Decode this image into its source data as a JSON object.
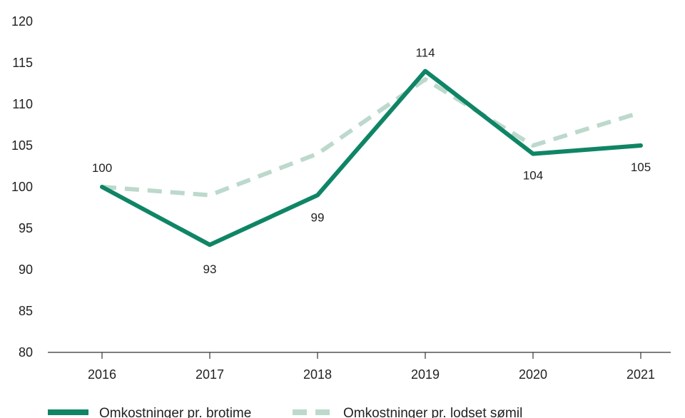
{
  "colors": {
    "brotime": "#0f8566",
    "lodset": "#bcd9cc",
    "axis": "#333333",
    "text": "#222222"
  },
  "chart_data": {
    "type": "line",
    "title": "",
    "xlabel": "",
    "ylabel": "",
    "categories": [
      "2016",
      "2017",
      "2018",
      "2019",
      "2020",
      "2021"
    ],
    "ylim": [
      80,
      120
    ],
    "yticks": [
      "120",
      "115",
      "110",
      "105",
      "100",
      "95",
      "90",
      "85",
      "80"
    ],
    "grid": false,
    "legend_position": "bottom-left",
    "series": [
      {
        "name": "Omkostninger pr. brotime",
        "values": [
          100,
          93,
          99,
          114,
          104,
          105
        ],
        "labels": [
          "100",
          "93",
          "99",
          "114",
          "104",
          "105"
        ],
        "style": "solid"
      },
      {
        "name": "Omkostninger pr. lodset sømil",
        "values": [
          100,
          99,
          104,
          113,
          105,
          109
        ],
        "style": "dashed"
      }
    ]
  }
}
